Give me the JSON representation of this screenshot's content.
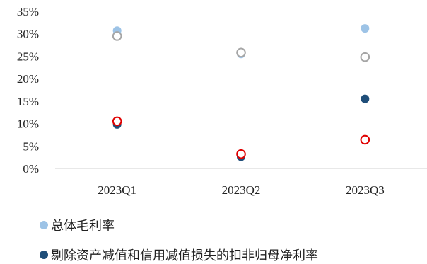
{
  "chart_data": {
    "type": "scatter",
    "categories": [
      "2023Q1",
      "2023Q2",
      "2023Q3"
    ],
    "ylim": [
      0,
      35
    ],
    "y_ticks": [
      0,
      5,
      10,
      15,
      20,
      25,
      30,
      35
    ],
    "y_tick_labels": [
      "0%",
      "5%",
      "10%",
      "15%",
      "20%",
      "25%",
      "30%",
      "35%"
    ],
    "grid": false,
    "legend_position": "bottom",
    "series": [
      {
        "name": "总体毛利率",
        "values": [
          30.7,
          25.5,
          31.2
        ],
        "color": "#9DC3E6",
        "marker": "filled"
      },
      {
        "name": "",
        "values": [
          29.5,
          25.8,
          24.8
        ],
        "color": "#A6A6A6",
        "marker": "hollow"
      },
      {
        "name": "剔除资产减值和信用减值损失的扣非归母净利率",
        "values": [
          9.8,
          2.6,
          15.5
        ],
        "color": "#1F4E79",
        "marker": "filled"
      },
      {
        "name": "",
        "values": [
          10.5,
          3.2,
          6.4
        ],
        "color": "#E00000",
        "marker": "hollow"
      }
    ]
  }
}
